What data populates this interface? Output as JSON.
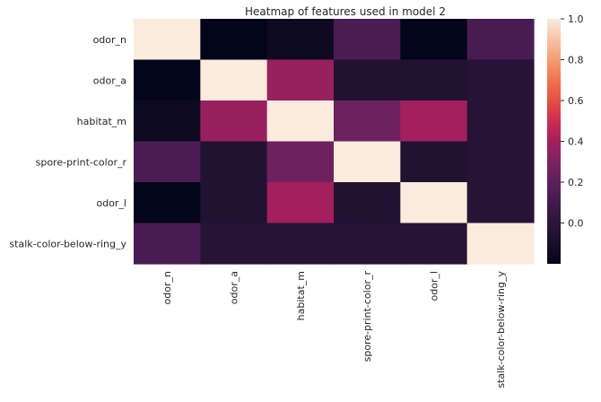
{
  "chart_data": {
    "type": "heatmap",
    "title": "Heatmap of features used in model 2",
    "xlabel": "",
    "ylabel": "",
    "rows": [
      "odor_n",
      "odor_a",
      "habitat_m",
      "spore-print-color_r",
      "odor_l",
      "stalk-color-below-ring_y"
    ],
    "columns": [
      "odor_n",
      "odor_a",
      "habitat_m",
      "spore-print-color_r",
      "odor_l",
      "stalk-color-below-ring_y"
    ],
    "values": [
      [
        1.0,
        -0.2,
        -0.15,
        0.13,
        -0.2,
        0.12
      ],
      [
        -0.2,
        1.0,
        0.37,
        -0.05,
        -0.06,
        -0.03
      ],
      [
        -0.15,
        0.37,
        1.0,
        0.25,
        0.4,
        -0.03
      ],
      [
        0.13,
        -0.05,
        0.25,
        1.0,
        -0.05,
        -0.03
      ],
      [
        -0.2,
        -0.05,
        0.4,
        -0.05,
        1.0,
        -0.03
      ],
      [
        0.12,
        -0.03,
        -0.03,
        -0.03,
        -0.03,
        1.0
      ]
    ],
    "colorbar": {
      "range": [
        -0.2,
        1.0
      ],
      "ticks": [
        "1.0",
        "0.8",
        "0.6",
        "0.4",
        "0.2",
        "0.0"
      ],
      "colormap": "rocket"
    }
  }
}
